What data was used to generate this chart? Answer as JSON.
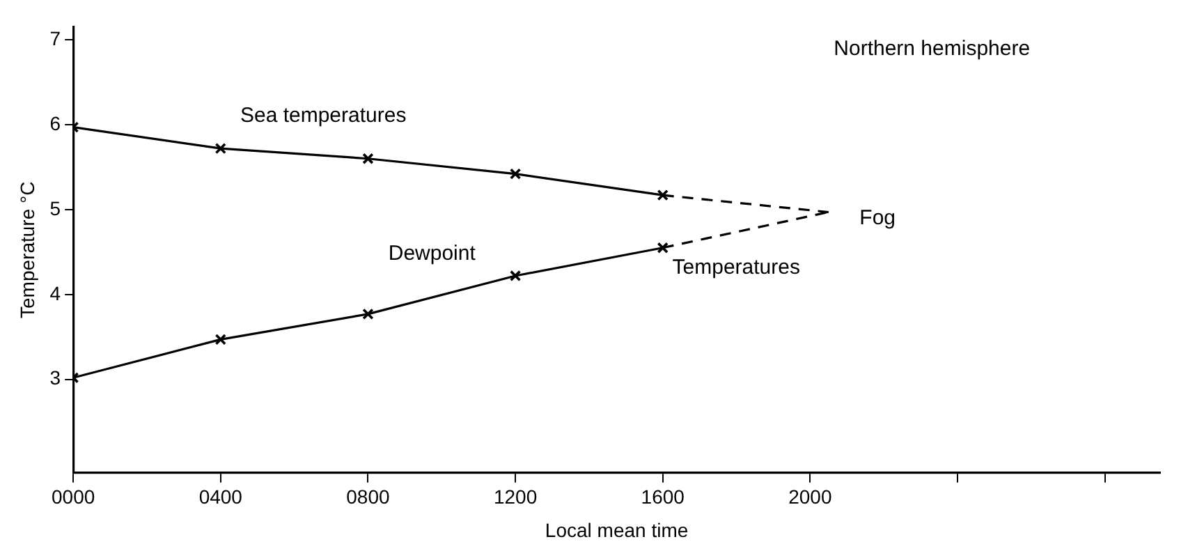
{
  "chart_data": {
    "type": "line",
    "xlabel": "Local mean time",
    "ylabel": "Temperature °C",
    "xlim": [
      0,
      2950
    ],
    "ylim": [
      1.9,
      7.15
    ],
    "xticks": [
      {
        "value": 0,
        "label": "0000"
      },
      {
        "value": 400,
        "label": "0400"
      },
      {
        "value": 800,
        "label": "0800"
      },
      {
        "value": 1200,
        "label": "1200"
      },
      {
        "value": 1600,
        "label": "1600"
      },
      {
        "value": 2000,
        "label": "2000"
      },
      {
        "value": 2400,
        "label": null
      },
      {
        "value": 2800,
        "label": null
      }
    ],
    "yticks": [
      3,
      4,
      5,
      6,
      7
    ],
    "grid": false,
    "legend": false,
    "series": [
      {
        "color": "#000000",
        "x": [
          0,
          400,
          800,
          1200,
          1600
        ],
        "values": [
          5.97,
          5.72,
          5.6,
          5.42,
          5.17
        ],
        "marker": "cross",
        "line_style": "solid"
      },
      {
        "color": "#000000",
        "x": [
          1600,
          2050
        ],
        "values": [
          5.17,
          4.97
        ],
        "marker": "none",
        "line_style": "dashed"
      },
      {
        "color": "#000000",
        "x": [
          0,
          400,
          800,
          1200,
          1600
        ],
        "values": [
          3.02,
          3.47,
          3.77,
          4.22,
          4.55
        ],
        "marker": "cross",
        "line_style": "solid"
      },
      {
        "color": "#000000",
        "x": [
          1600,
          2050
        ],
        "values": [
          4.55,
          4.97
        ],
        "marker": "none",
        "line_style": "dashed"
      }
    ],
    "annotations": [
      "Sea temperatures",
      "Dewpoint",
      "Temperatures",
      "Fog",
      "Northern hemisphere"
    ]
  }
}
